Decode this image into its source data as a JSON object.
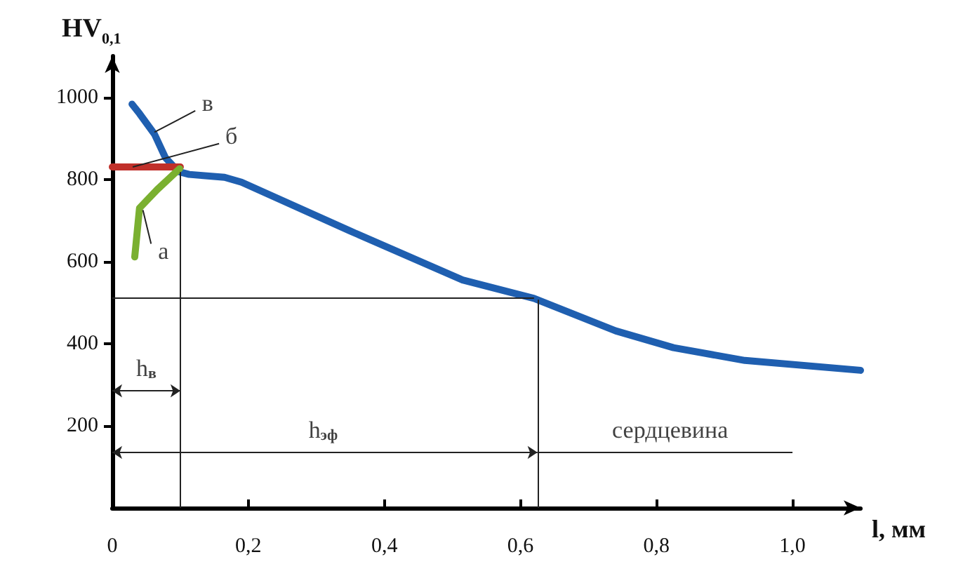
{
  "chart_data": {
    "type": "line",
    "xlabel": "l, мм",
    "ylabel": "HV$_{0,1}$",
    "xlim": [
      0,
      1.1
    ],
    "ylim": [
      0,
      1100
    ],
    "xticks": [
      0,
      {
        "value": 0.2,
        "label": "0,2"
      },
      {
        "value": 0.4,
        "label": "0,4"
      },
      {
        "value": 0.6,
        "label": "0,6"
      },
      {
        "value": 0.8,
        "label": "0,8"
      },
      {
        "value": 1.0,
        "label": "1,0"
      }
    ],
    "yticks": [
      200,
      400,
      600,
      800,
      1000
    ],
    "grid": false,
    "marker": "none",
    "line_style": "solid",
    "series": [
      {
        "color": "#1f5fb0",
        "x": [
          0.029,
          0.04,
          0.062,
          0.078,
          0.097,
          0.113,
          0.165,
          0.19,
          0.35,
          0.515,
          0.62,
          0.74,
          0.825,
          0.93,
          1.1
        ],
        "values": [
          983,
          960,
          910,
          853,
          819,
          812,
          805,
          793,
          674,
          555,
          510,
          431,
          390,
          359,
          335
        ]
      },
      {
        "color": "#c0302a",
        "x": [
          0,
          0.1
        ],
        "values": [
          830,
          830
        ]
      },
      {
        "color": "#7ab030",
        "x": [
          0.033,
          0.04,
          0.066,
          0.099
        ],
        "values": [
          611,
          730,
          775,
          826
        ]
      }
    ],
    "ref_lines": [
      {
        "axis": "x",
        "value": 0.1
      },
      {
        "axis": "x",
        "value": 0.625
      },
      {
        "axis": "y",
        "value": 510
      }
    ],
    "annotations": [
      {
        "text": "в",
        "x": 0.062,
        "y": 915
      },
      {
        "text": "б",
        "x": 0.03,
        "y": 830
      },
      {
        "text": "а",
        "x": 0.045,
        "y": 725
      },
      "h$_{в}$",
      "h$_{эф}$",
      "сердцевина"
    ]
  }
}
